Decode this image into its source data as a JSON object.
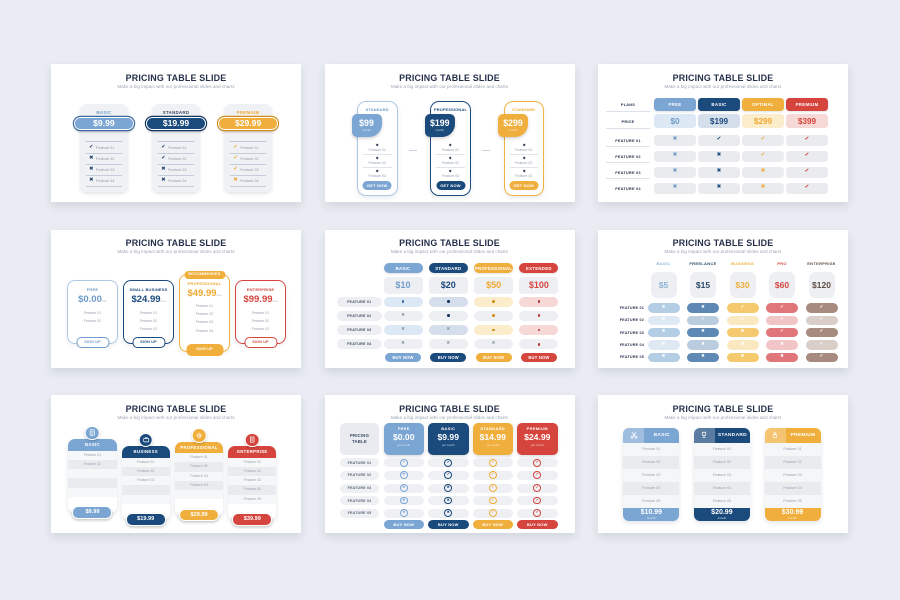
{
  "title": "PRICING TABLE SLIDE",
  "subtitle": "Make a big impact with our professional slides and charts",
  "colors": {
    "blue": {
      "main": "#7ba5d3",
      "dark": "#3a6a9f",
      "tint": "#dce8f4",
      "text": "#6f9cc9",
      "border": "#afc8e2"
    },
    "navy": {
      "main": "#1b4a7d",
      "dark": "#10355d",
      "tint": "#d5dfeb",
      "text": "#1b4a7d",
      "border": "#1b4a7d"
    },
    "yellow": {
      "main": "#f0ae3c",
      "dark": "#cf8f1e",
      "tint": "#fbeccb",
      "text": "#efa92f",
      "border": "#f0b23f"
    },
    "red": {
      "main": "#d5453e",
      "dark": "#b23630",
      "tint": "#f6d8d6",
      "text": "#d5453e",
      "border": "#d5453e"
    },
    "sky": {
      "main": "#b3cde5",
      "dark": "#8fb3d6",
      "tint": "#dce8f4",
      "text": "#8fb3d6",
      "border": "#b3cde5"
    },
    "steel": {
      "main": "#5d89b4",
      "dark": "#41688c",
      "tint": "#cddbe9",
      "text": "#2c4a69",
      "border": "#5d89b4"
    },
    "gold": {
      "main": "#f5c96d",
      "dark": "#d8a33c",
      "tint": "#fbeccb",
      "text": "#eeb03a",
      "border": "#f5c96d"
    },
    "salmon": {
      "main": "#e0767a",
      "dark": "#c9545a",
      "tint": "#f6d8d6",
      "text": "#d5453e",
      "border": "#e0767a"
    },
    "mauve": {
      "main": "#a68b7e",
      "dark": "#84695c",
      "tint": "#e3d8d2",
      "text": "#5f4c42",
      "border": "#a68b7e"
    }
  },
  "slides": [
    {
      "type": "pills",
      "feature_labels": [
        "Feature 01",
        "Feature 02",
        "Feature 03",
        "Feature 04"
      ],
      "plans": [
        {
          "name": "BASIC",
          "color": "blue",
          "price": "$9.99",
          "cells": [
            "check",
            "cross",
            "cross",
            "cross"
          ]
        },
        {
          "name": "STANDARD",
          "color": "navy",
          "price": "$19.99",
          "cells": [
            "check",
            "check",
            "cross",
            "cross"
          ]
        },
        {
          "name": "PREMIUM",
          "color": "yellow",
          "price": "$29.99",
          "cells": [
            "check",
            "check",
            "check",
            "cross"
          ]
        }
      ]
    },
    {
      "type": "getnow",
      "button_label": "GET NOW",
      "per_label": "/month",
      "feature_labels": [
        "Feature 01",
        "Feature 02",
        "Feature 03"
      ],
      "plans": [
        {
          "name": "STANDARD",
          "color": "blue",
          "price": "$99"
        },
        {
          "name": "PROFESSIONAL",
          "color": "navy",
          "price": "$199"
        },
        {
          "name": "STANDARD",
          "color": "yellow",
          "price": "$299"
        }
      ]
    },
    {
      "type": "matrix",
      "row_labels": [
        "PLANS",
        "PRICE",
        "FEATURE 01",
        "FEATURE 02",
        "FEATURE 03",
        "FEATURE 04"
      ],
      "plans": [
        {
          "name": "FREE",
          "color": "blue",
          "price": "$0"
        },
        {
          "name": "BASIC",
          "color": "navy",
          "price": "$199"
        },
        {
          "name": "OPTIMAL",
          "color": "yellow",
          "price": "$299"
        },
        {
          "name": "PREMIUM",
          "color": "red",
          "price": "$399"
        }
      ],
      "cells": [
        [
          "cross",
          "check",
          "check",
          "check"
        ],
        [
          "cross",
          "cross",
          "check",
          "check"
        ],
        [
          "cross",
          "cross",
          "cross",
          "check"
        ],
        [
          "cross",
          "cross",
          "cross",
          "check"
        ]
      ]
    },
    {
      "type": "signup",
      "button_label": "SIGN UP",
      "badge_label": "RECOMMENDED",
      "per_label": "/mo",
      "plans": [
        {
          "name": "FREE",
          "color": "blue",
          "price": "$0.00",
          "featured": false,
          "features": [
            "Feature 01",
            "Feature 02"
          ]
        },
        {
          "name": "SMALL BUSINESS",
          "color": "navy",
          "price": "$24.99",
          "featured": false,
          "features": [
            "Feature 01",
            "Feature 02",
            "Feature 03"
          ]
        },
        {
          "name": "PROFESSIONAL",
          "color": "yellow",
          "price": "$49.99",
          "featured": true,
          "features": [
            "Feature 01",
            "Feature 02",
            "Feature 03",
            "Feature 04"
          ]
        },
        {
          "name": "ENTERPRISE",
          "color": "red",
          "price": "$99.99",
          "featured": false,
          "features": [
            "Feature 01",
            "Feature 02",
            "Feature 03"
          ]
        }
      ]
    },
    {
      "type": "buytable",
      "button_label": "BUY NOW",
      "row_labels": [
        "FEATURE 01",
        "FEATURE 02",
        "FEATURE 03",
        "FEATURE 04"
      ],
      "plans": [
        {
          "name": "BASIC",
          "color": "blue",
          "price": "$10"
        },
        {
          "name": "STANDARD",
          "color": "navy",
          "price": "$20"
        },
        {
          "name": "PROFESSIONAL",
          "color": "yellow",
          "price": "$50"
        },
        {
          "name": "EXTENDED",
          "color": "red",
          "price": "$100"
        }
      ],
      "cells": [
        [
          "dot",
          "dot",
          "dot",
          "dot"
        ],
        [
          "cross",
          "dot",
          "dot",
          "dot"
        ],
        [
          "cross",
          "cross",
          "dot",
          "dot"
        ],
        [
          "cross",
          "cross",
          "cross",
          "dot"
        ]
      ]
    },
    {
      "type": "fivecol",
      "row_labels": [
        "FEATURE 01",
        "FEATURE 02",
        "FEATURE 03",
        "FEATURE 04",
        "FEATURE 05"
      ],
      "plans": [
        {
          "name": "BASIC",
          "color": "sky",
          "price": "$5"
        },
        {
          "name": "FREELANCE",
          "color": "steel",
          "price": "$15"
        },
        {
          "name": "BUSINESS",
          "color": "gold",
          "price": "$30"
        },
        {
          "name": "PRO",
          "color": "salmon",
          "price": "$60"
        },
        {
          "name": "ENTERPRISE",
          "color": "mauve",
          "price": "$120"
        }
      ],
      "cells": [
        [
          "cross",
          "cross",
          "check",
          "check",
          "check"
        ],
        [
          "cross",
          "check",
          "check",
          "check",
          "check"
        ],
        [
          "cross",
          "cross",
          "cross",
          "check",
          "check"
        ],
        [
          "cross",
          "cross",
          "cross",
          "cross",
          "check"
        ],
        [
          "cross",
          "cross",
          "cross",
          "cross",
          "check"
        ]
      ]
    },
    {
      "type": "iconcards",
      "feature_labels": [
        "Feature 01",
        "Feature 02",
        "Feature 03",
        "Feature 04",
        "Feature 05"
      ],
      "plans": [
        {
          "name": "BASIC",
          "color": "blue",
          "price": "$9.99",
          "icon": "calculator",
          "feature_count": 2
        },
        {
          "name": "BUSINESS",
          "color": "navy",
          "price": "$19.99",
          "icon": "briefcase",
          "feature_count": 3
        },
        {
          "name": "PROFESSIONAL",
          "color": "yellow",
          "price": "$29.99",
          "icon": "gear",
          "feature_count": 4
        },
        {
          "name": "ENTERPRISE",
          "color": "red",
          "price": "$39.99",
          "icon": "building",
          "feature_count": 5
        }
      ]
    },
    {
      "type": "rowtable",
      "corner_label": "PRICING TABLE",
      "button_label": "BUY NOW",
      "per_label": "per month",
      "row_labels": [
        "FEATURE 01",
        "FEATURE 02",
        "FEATURE 03",
        "FEATURE 04",
        "FEATURE 05"
      ],
      "plans": [
        {
          "name": "FREE",
          "color": "blue",
          "price": "$0.00"
        },
        {
          "name": "BASIC",
          "color": "navy",
          "price": "$9.99"
        },
        {
          "name": "STANDARD",
          "color": "yellow",
          "price": "$14.99"
        },
        {
          "name": "PREMIUM",
          "color": "red",
          "price": "$24.99"
        }
      ],
      "cells": [
        [
          "check",
          "check",
          "check",
          "check"
        ],
        [
          "cross",
          "check",
          "check",
          "check"
        ],
        [
          "cross",
          "cross",
          "check",
          "check"
        ],
        [
          "cross",
          "cross",
          "check",
          "check"
        ],
        [
          "cross",
          "cross",
          "check",
          "check"
        ]
      ]
    },
    {
      "type": "widecards",
      "per_label": "/month",
      "feature_labels": [
        "Feature 01",
        "Feature 02",
        "Feature 03",
        "Feature 04",
        "Feature 05"
      ],
      "plans": [
        {
          "name": "BASIC",
          "color": "blue",
          "price": "$10.99",
          "icon": "scissors"
        },
        {
          "name": "STANDARD",
          "color": "navy",
          "price": "$20.99",
          "icon": "trophy"
        },
        {
          "name": "PREMIUM",
          "color": "yellow",
          "price": "$30.99",
          "icon": "medal"
        }
      ]
    }
  ]
}
